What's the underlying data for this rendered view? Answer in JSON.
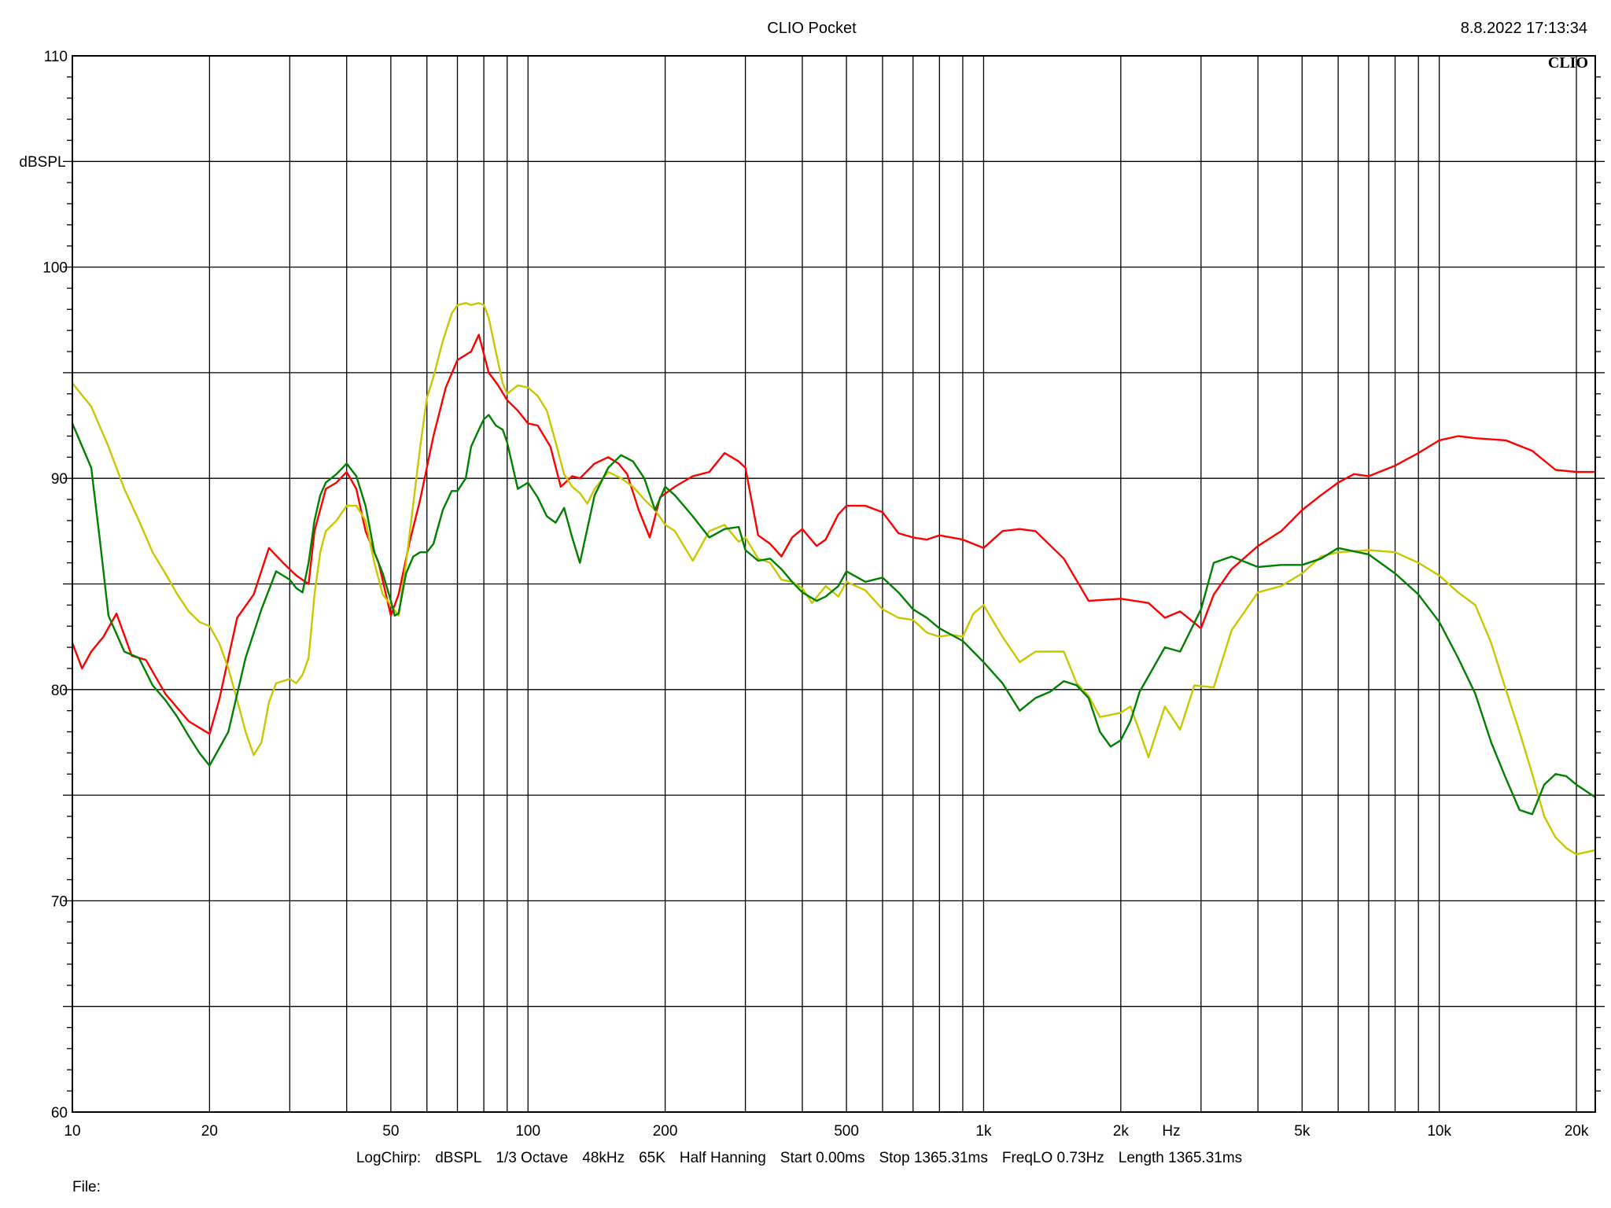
{
  "header": {
    "title": "CLIO Pocket",
    "timestamp": "8.8.2022 17:13:34",
    "logo_text": "CLIO"
  },
  "footer": {
    "settings": [
      "LogChirp:",
      "dBSPL",
      "1/3 Octave",
      "48kHz",
      "65K",
      "Half Hanning",
      "Start 0.00ms",
      "Stop 1365.31ms",
      "FreqLO 0.73Hz",
      "Length 1365.31ms"
    ],
    "file_label": "File:"
  },
  "colors": {
    "background": "#ffffff",
    "grid": "#000000",
    "red": "#ff0000",
    "yellow": "#c8c800",
    "green": "#008000"
  },
  "chart_data": {
    "type": "line",
    "x_scale": "log",
    "xlim": [
      10,
      22000
    ],
    "ylim": [
      60,
      110
    ],
    "ylabel": "dBSPL",
    "xunit": "Hz",
    "grid": true,
    "x_ticks": [
      {
        "value": 10,
        "label": "10"
      },
      {
        "value": 20,
        "label": "20"
      },
      {
        "value": 50,
        "label": "50"
      },
      {
        "value": 100,
        "label": "100"
      },
      {
        "value": 200,
        "label": "200"
      },
      {
        "value": 500,
        "label": "500"
      },
      {
        "value": 1000,
        "label": "1k"
      },
      {
        "value": 2000,
        "label": "2k"
      },
      {
        "value": 5000,
        "label": "5k"
      },
      {
        "value": 10000,
        "label": "10k"
      },
      {
        "value": 20000,
        "label": "20k"
      }
    ],
    "y_ticks": [
      {
        "value": 60,
        "label": "60"
      },
      {
        "value": 70,
        "label": "70"
      },
      {
        "value": 80,
        "label": "80"
      },
      {
        "value": 90,
        "label": "90"
      },
      {
        "value": 100,
        "label": "100"
      },
      {
        "value": 110,
        "label": "110"
      }
    ],
    "series": [
      {
        "color": "#ff0000",
        "x": [
          10,
          10.5,
          11,
          11.7,
          12.5,
          13.5,
          14.5,
          16,
          18,
          20,
          21,
          23,
          25,
          27,
          29,
          31,
          33,
          34,
          36,
          38,
          40,
          42,
          44,
          47,
          50,
          52,
          55,
          58,
          62,
          66,
          70,
          75,
          78,
          82,
          86,
          90,
          95,
          100,
          105,
          112,
          118,
          125,
          130,
          140,
          150,
          158,
          165,
          175,
          185,
          195,
          210,
          230,
          250,
          270,
          290,
          300,
          320,
          340,
          360,
          380,
          400,
          430,
          450,
          480,
          500,
          550,
          600,
          650,
          700,
          750,
          800,
          900,
          1000,
          1100,
          1200,
          1300,
          1500,
          1700,
          2000,
          2300,
          2500,
          2700,
          3000,
          3200,
          3500,
          4000,
          4500,
          5000,
          5500,
          6000,
          6500,
          7000,
          8000,
          9000,
          10000,
          11000,
          12000,
          14000,
          16000,
          18000,
          20000,
          22000
        ],
        "y": [
          82.2,
          81,
          81.8,
          82.5,
          83.6,
          81.6,
          81.4,
          79.8,
          78.5,
          77.9,
          79.5,
          83.4,
          84.5,
          86.7,
          86,
          85.4,
          85,
          87.5,
          89.5,
          89.8,
          90.3,
          89.5,
          87.5,
          86,
          83.5,
          84.5,
          87,
          89,
          92,
          94.3,
          95.6,
          96,
          96.8,
          95,
          94.4,
          93.7,
          93.2,
          92.6,
          92.5,
          91.5,
          89.6,
          90.1,
          90,
          90.7,
          91,
          90.7,
          90.2,
          88.5,
          87.2,
          89.1,
          89.6,
          90.1,
          90.3,
          91.2,
          90.8,
          90.5,
          87.3,
          86.9,
          86.3,
          87.2,
          87.6,
          86.8,
          87.1,
          88.3,
          88.7,
          88.7,
          88.4,
          87.4,
          87.2,
          87.1,
          87.3,
          87.1,
          86.7,
          87.5,
          87.6,
          87.5,
          86.2,
          84.2,
          84.3,
          84.1,
          83.4,
          83.7,
          82.9,
          84.5,
          85.7,
          86.8,
          87.5,
          88.5,
          89.2,
          89.8,
          90.2,
          90.1,
          90.6,
          91.2,
          91.8,
          92,
          91.9,
          91.8,
          91.3,
          90.4,
          90.3,
          90.3
        ]
      },
      {
        "color": "#c8c800",
        "x": [
          10,
          11,
          12,
          13,
          14,
          15,
          16,
          17,
          18,
          19,
          20,
          21,
          22,
          23,
          24,
          25,
          26,
          27,
          28,
          30,
          31,
          32,
          33,
          34,
          35,
          36,
          38,
          40,
          42,
          44,
          46,
          48,
          50,
          52,
          54,
          56,
          58,
          60,
          62,
          65,
          68,
          70,
          73,
          75,
          78,
          80,
          82,
          85,
          88,
          90,
          95,
          100,
          105,
          110,
          115,
          120,
          125,
          130,
          135,
          140,
          150,
          160,
          170,
          180,
          190,
          200,
          210,
          230,
          250,
          270,
          290,
          300,
          320,
          340,
          360,
          380,
          400,
          420,
          450,
          480,
          500,
          550,
          600,
          650,
          700,
          750,
          800,
          850,
          900,
          950,
          1000,
          1100,
          1200,
          1300,
          1400,
          1500,
          1600,
          1700,
          1800,
          2000,
          2100,
          2200,
          2300,
          2500,
          2700,
          2900,
          3200,
          3500,
          4000,
          4500,
          5000,
          5500,
          6000,
          7000,
          8000,
          9000,
          10000,
          11000,
          12000,
          13000,
          14000,
          15000,
          16000,
          17000,
          18000,
          19000,
          20000,
          22000
        ],
        "y": [
          94.5,
          93.4,
          91.5,
          89.5,
          88,
          86.5,
          85.5,
          84.5,
          83.7,
          83.2,
          83,
          82.2,
          81,
          79.5,
          78,
          76.9,
          77.5,
          79.4,
          80.3,
          80.5,
          80.3,
          80.7,
          81.5,
          84.5,
          86.5,
          87.5,
          88,
          88.7,
          88.7,
          88,
          86,
          84.5,
          84,
          83.5,
          86,
          88.8,
          91.5,
          93.8,
          94.8,
          96.5,
          97.8,
          98.2,
          98.3,
          98.2,
          98.3,
          98.2,
          97.6,
          96,
          94.5,
          94,
          94.4,
          94.3,
          93.9,
          93.2,
          91.7,
          90.2,
          89.6,
          89.3,
          88.8,
          89.5,
          90.3,
          90,
          89.6,
          89,
          88.5,
          87.8,
          87.5,
          86.1,
          87.5,
          87.8,
          87,
          87.2,
          86.2,
          86,
          85.2,
          85.1,
          84.8,
          84.1,
          84.9,
          84.4,
          85.1,
          84.7,
          83.8,
          83.4,
          83.3,
          82.7,
          82.5,
          82.6,
          82.5,
          83.6,
          84,
          82.5,
          81.3,
          81.8,
          81.8,
          81.8,
          80.3,
          79.7,
          78.7,
          78.9,
          79.2,
          78,
          76.8,
          79.2,
          78.1,
          80.2,
          80.1,
          82.8,
          84.6,
          84.9,
          85.5,
          86.3,
          86.5,
          86.6,
          86.5,
          86,
          85.4,
          84.6,
          84,
          82.2,
          80,
          78,
          76,
          74,
          73,
          72.5,
          72.2,
          72.4
        ]
      },
      {
        "color": "#008000",
        "x": [
          10,
          11,
          11.5,
          12,
          13,
          14,
          15,
          16,
          17,
          18,
          19,
          20,
          22,
          24,
          26,
          28,
          30,
          31,
          32,
          33,
          34,
          35,
          36,
          38,
          40,
          42,
          44,
          46,
          48,
          50,
          51,
          52,
          54,
          56,
          58,
          60,
          62,
          65,
          68,
          70,
          73,
          75,
          78,
          80,
          82,
          85,
          88,
          90,
          95,
          100,
          105,
          110,
          115,
          120,
          125,
          130,
          140,
          150,
          160,
          170,
          180,
          190,
          200,
          210,
          230,
          250,
          270,
          290,
          300,
          320,
          340,
          360,
          380,
          400,
          430,
          450,
          480,
          500,
          550,
          600,
          650,
          700,
          750,
          800,
          900,
          1000,
          1100,
          1200,
          1300,
          1400,
          1500,
          1600,
          1700,
          1800,
          1900,
          2000,
          2100,
          2200,
          2500,
          2700,
          3000,
          3200,
          3500,
          4000,
          4500,
          5000,
          5500,
          6000,
          7000,
          8000,
          9000,
          10000,
          11000,
          12000,
          13000,
          14000,
          15000,
          16000,
          17000,
          18000,
          19000,
          20000,
          22000
        ],
        "y": [
          92.6,
          90.5,
          87,
          83.5,
          81.8,
          81.5,
          80.2,
          79.5,
          78.7,
          77.8,
          77,
          76.4,
          78,
          81.5,
          83.8,
          85.6,
          85.2,
          84.8,
          84.6,
          86,
          88,
          89.2,
          89.8,
          90.2,
          90.7,
          90.1,
          88.7,
          86.5,
          85.5,
          84.2,
          83.5,
          83.6,
          85.5,
          86.3,
          86.5,
          86.5,
          86.9,
          88.5,
          89.4,
          89.4,
          90,
          91.5,
          92.3,
          92.8,
          93,
          92.5,
          92.3,
          91.7,
          89.5,
          89.8,
          89.1,
          88.2,
          87.9,
          88.6,
          87.2,
          86,
          89.2,
          90.5,
          91.1,
          90.8,
          90,
          88.5,
          89.6,
          89.2,
          88.2,
          87.2,
          87.6,
          87.7,
          86.6,
          86.1,
          86.2,
          85.7,
          85.1,
          84.6,
          84.2,
          84.4,
          84.9,
          85.6,
          85.1,
          85.3,
          84.6,
          83.8,
          83.4,
          82.9,
          82.3,
          81.3,
          80.3,
          79,
          79.6,
          79.9,
          80.4,
          80.2,
          79.6,
          78,
          77.3,
          77.6,
          78.5,
          79.9,
          82,
          81.8,
          83.8,
          86,
          86.3,
          85.8,
          85.9,
          85.9,
          86.2,
          86.7,
          86.4,
          85.5,
          84.5,
          83.2,
          81.5,
          79.8,
          77.5,
          75.8,
          74.3,
          74.1,
          75.5,
          76,
          75.9,
          75.5,
          74.9
        ]
      }
    ]
  }
}
